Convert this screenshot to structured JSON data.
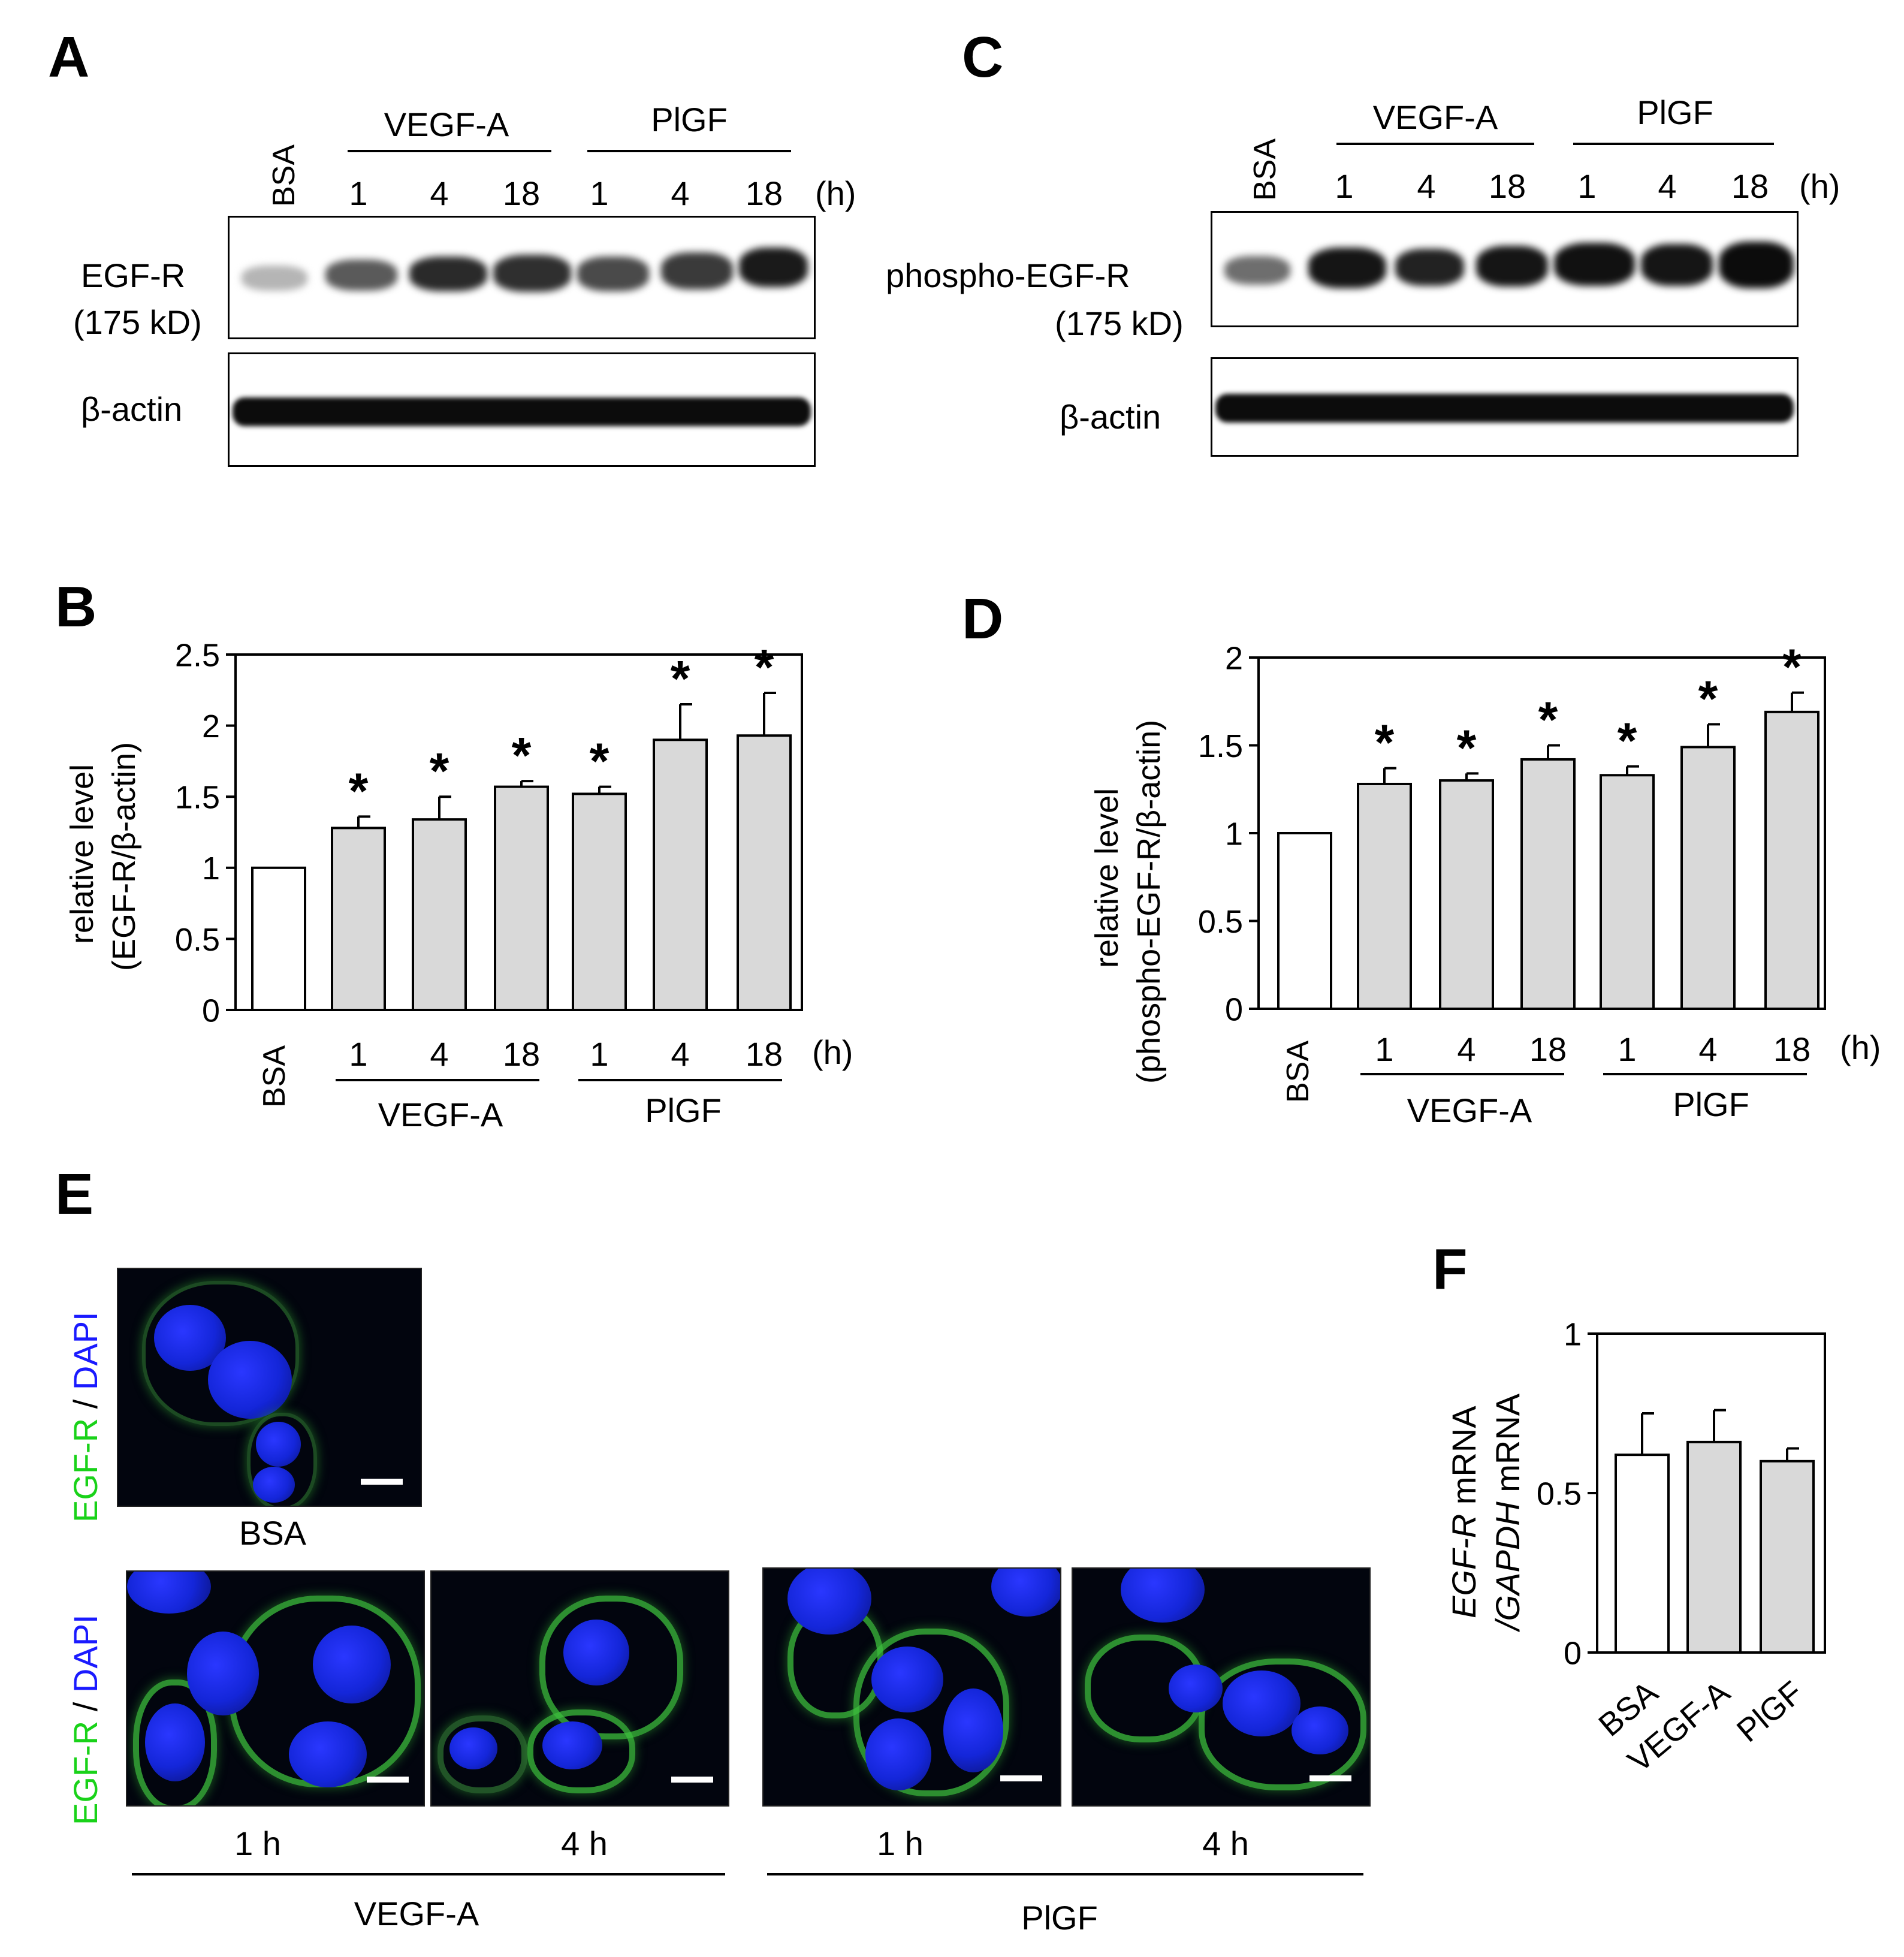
{
  "panels": {
    "a": "A",
    "b": "B",
    "c": "C",
    "d": "D",
    "e": "E",
    "f": "F"
  },
  "time_unit": "(h)",
  "groups": {
    "bsa": "BSA",
    "vegf": "VEGF-A",
    "pigf": "PlGF"
  },
  "time_points": [
    "1",
    "4",
    "18"
  ],
  "blot_a": {
    "target": "EGF-R",
    "size": "(175 kD)",
    "loading": "β-actin"
  },
  "blot_c": {
    "target": "phospho-EGF-R",
    "size": "(175 kD)",
    "loading": "β-actin"
  },
  "colors": {
    "control_bar": "#ffffff",
    "treated_bar": "#d9d9d9",
    "green_channel": "#19d219",
    "blue_channel": "#1a1aff"
  },
  "chart_data": [
    {
      "panel": "B",
      "type": "bar",
      "ylabel_line1": "relative level",
      "ylabel_line2": "(EGF-R/β-actin)",
      "ylim": [
        0,
        2.5
      ],
      "yticks": [
        "0",
        "0.5",
        "1",
        "1.5",
        "2",
        "2.5"
      ],
      "categories": [
        "BSA",
        "1",
        "4",
        "18",
        "1",
        "4",
        "18"
      ],
      "groups": [
        "BSA",
        "VEGF-A",
        "VEGF-A",
        "VEGF-A",
        "PlGF",
        "PlGF",
        "PlGF"
      ],
      "values": [
        1.0,
        1.28,
        1.34,
        1.57,
        1.52,
        1.9,
        1.93
      ],
      "errors": [
        0,
        0.08,
        0.16,
        0.04,
        0.05,
        0.25,
        0.3
      ],
      "significant": [
        false,
        true,
        true,
        true,
        true,
        true,
        true
      ],
      "annotation": "*"
    },
    {
      "panel": "D",
      "type": "bar",
      "ylabel_line1": "relative level",
      "ylabel_line2": "(phospho-EGF-R/β-actin)",
      "ylim": [
        0,
        2
      ],
      "yticks": [
        "0",
        "0.5",
        "1",
        "1.5",
        "2"
      ],
      "categories": [
        "BSA",
        "1",
        "4",
        "18",
        "1",
        "4",
        "18"
      ],
      "groups": [
        "BSA",
        "VEGF-A",
        "VEGF-A",
        "VEGF-A",
        "PlGF",
        "PlGF",
        "PlGF"
      ],
      "values": [
        1.0,
        1.28,
        1.3,
        1.42,
        1.33,
        1.49,
        1.69
      ],
      "errors": [
        0,
        0.09,
        0.04,
        0.08,
        0.05,
        0.13,
        0.11
      ],
      "significant": [
        false,
        true,
        true,
        true,
        true,
        true,
        true
      ],
      "annotation": "*"
    },
    {
      "panel": "F",
      "type": "bar",
      "ylabel_part1": "EGF-R",
      "ylabel_part1b": " mRNA",
      "ylabel_part2": "/GAPDH",
      "ylabel_part2b": " mRNA",
      "ylim": [
        0,
        1
      ],
      "yticks": [
        "0",
        "0.5",
        "1"
      ],
      "categories": [
        "BSA",
        "VEGF-A",
        "PlGF"
      ],
      "values": [
        0.62,
        0.66,
        0.6
      ],
      "errors": [
        0.13,
        0.1,
        0.04
      ]
    }
  ],
  "micro": {
    "stain_green": "EGF-R",
    "stain_sep": " / ",
    "stain_blue": "DAPI",
    "bsa_caption": "BSA",
    "times": [
      "1 h",
      "4 h",
      "1 h",
      "4 h"
    ],
    "group_vegf": "VEGF-A",
    "group_pigf": "PlGF"
  }
}
